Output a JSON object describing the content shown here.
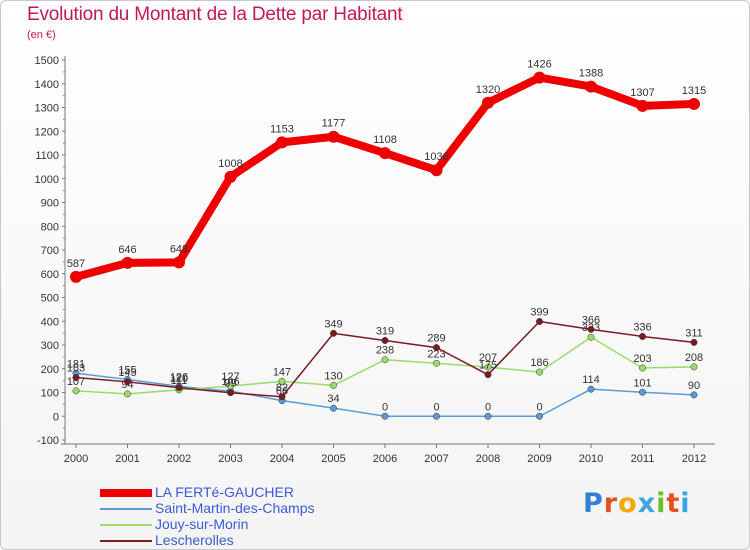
{
  "title": "Evolution du Montant de la Dette par Habitant",
  "subtitle": "(en €)",
  "logo": {
    "text": "Proxiti",
    "letter_colors": [
      "#2f7fd2",
      "#e6521f",
      "#f2a900",
      "#3aa5e0",
      "#6cbf2a",
      "#e6521f",
      "#3aa5e0"
    ]
  },
  "chart_data": {
    "type": "line",
    "x": [
      2000,
      2001,
      2002,
      2003,
      2004,
      2005,
      2006,
      2007,
      2008,
      2009,
      2010,
      2011,
      2012
    ],
    "ylim": [
      -100,
      1500
    ],
    "yticks": [
      -100,
      0,
      100,
      200,
      300,
      400,
      500,
      600,
      700,
      800,
      900,
      1000,
      1100,
      1200,
      1300,
      1400,
      1500
    ],
    "grid": false,
    "legend_position": "bottom-left",
    "series": [
      {
        "name": "LA FERTé-GAUCHER",
        "color": "#ee0000",
        "values": [
          587,
          646,
          648,
          1008,
          1153,
          1177,
          1108,
          1036,
          1320,
          1426,
          1388,
          1307,
          1315
        ]
      },
      {
        "name": "Saint-Martin-des-Champs",
        "color": "#5b9bd5",
        "values": [
          181,
          155,
          126,
          106,
          66,
          34,
          0,
          0,
          0,
          0,
          114,
          101,
          90
        ]
      },
      {
        "name": "Jouy-sur-Morin",
        "color": "#99dd66",
        "values": [
          107,
          94,
          111,
          127,
          147,
          130,
          238,
          223,
          207,
          186,
          333,
          203,
          208
        ]
      },
      {
        "name": "Lescherolles",
        "color": "#7a1a22",
        "values": [
          163,
          145,
          120,
          99,
          82,
          349,
          319,
          289,
          175,
          399,
          366,
          336,
          311
        ]
      }
    ]
  }
}
